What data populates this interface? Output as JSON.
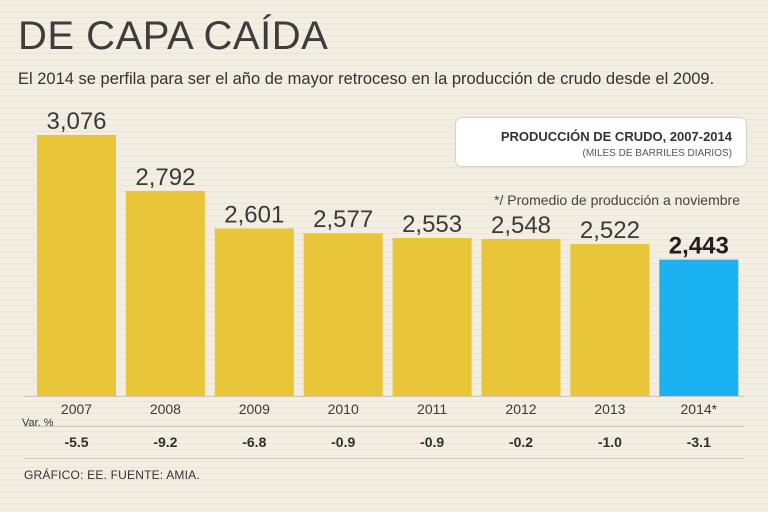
{
  "header": {
    "title": "DE CAPA CAÍDA",
    "subtitle": "El 2014 se perfila para ser el año de mayor retroceso en la producción de crudo desde el 2009."
  },
  "legend": {
    "title": "PRODUCCIÓN DE CRUDO, 2007-2014",
    "subtitle": "(MILES DE BARRILES DIARIOS)"
  },
  "note": "*/ Promedio de producción a noviembre",
  "var_label": "Var. %",
  "source": "GRÁFICO: EE. FUENTE: AMIA.",
  "colors": {
    "bar": "#e9c53a",
    "highlight": "#1ab2f1",
    "background": "#f3ede2"
  },
  "chart_data": {
    "type": "bar",
    "title": "PRODUCCIÓN DE CRUDO, 2007-2014",
    "ylabel": "Miles de barriles diarios",
    "xlabel": "",
    "categories": [
      "2007",
      "2008",
      "2009",
      "2010",
      "2011",
      "2012",
      "2013",
      "2014*"
    ],
    "values": [
      3076,
      2792,
      2601,
      2577,
      2553,
      2548,
      2522,
      2443
    ],
    "value_labels": [
      "3,076",
      "2,792",
      "2,601",
      "2,577",
      "2,553",
      "2,548",
      "2,522",
      "2,443"
    ],
    "var_pct": [
      "-5.5",
      "-9.2",
      "-6.8",
      "-0.9",
      "-0.9",
      "-0.2",
      "-1.0",
      "-3.1"
    ],
    "highlight_index": 7,
    "ylim": [
      1750,
      3076
    ],
    "grid": false
  }
}
